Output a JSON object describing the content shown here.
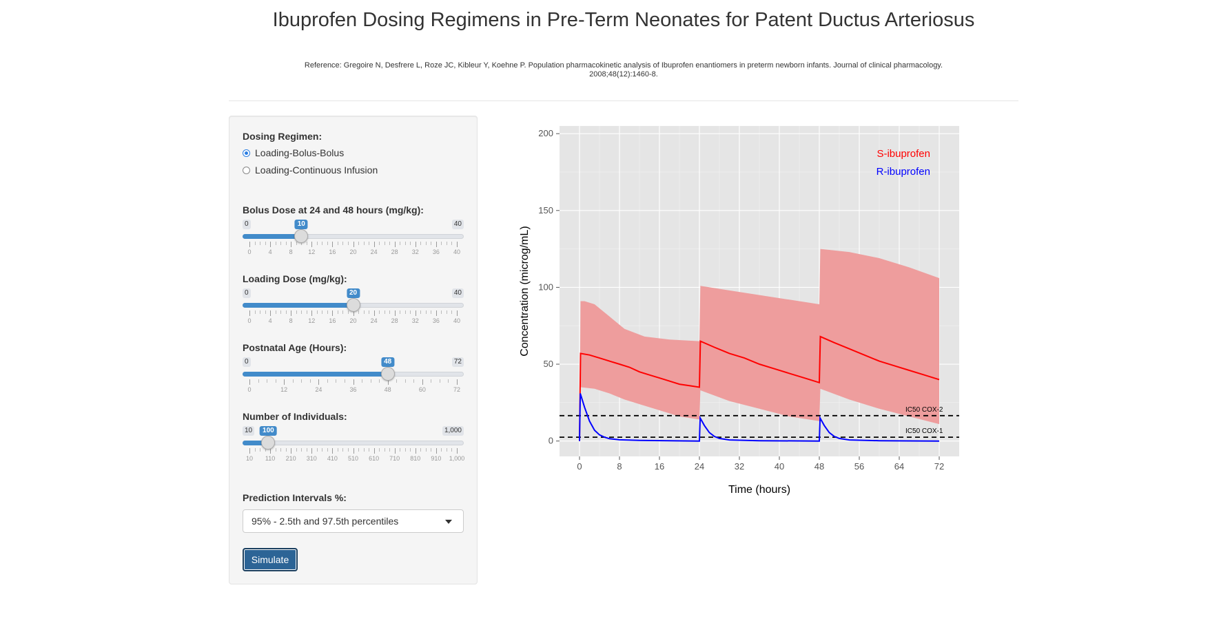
{
  "page": {
    "title": "Ibuprofen Dosing Regimens in Pre-Term Neonates for Patent Ductus Arteriosus",
    "reference": "Reference: Gregoire N, Desfrere L, Roze JC, Kibleur Y, Koehne P. Population pharmacokinetic analysis of Ibuprofen enantiomers in preterm newborn infants. Journal of clinical pharmacology. 2008;48(12):1460-8."
  },
  "sidebar": {
    "dosing_regimen": {
      "label": "Dosing Regimen:",
      "options": [
        "Loading-Bolus-Bolus",
        "Loading-Continuous Infusion"
      ],
      "selected": 0
    },
    "sliders": [
      {
        "key": "bolus",
        "label": "Bolus Dose at 24 and 48 hours (mg/kg):",
        "min": 0,
        "max": 40,
        "value": 10,
        "min_label": "0",
        "max_label": "40",
        "value_label": "10",
        "tick_labels": [
          "0",
          "4",
          "8",
          "12",
          "16",
          "20",
          "24",
          "28",
          "32",
          "36",
          "40"
        ]
      },
      {
        "key": "loading",
        "label": "Loading Dose (mg/kg):",
        "min": 0,
        "max": 40,
        "value": 20,
        "min_label": "0",
        "max_label": "40",
        "value_label": "20",
        "tick_labels": [
          "0",
          "4",
          "8",
          "12",
          "16",
          "20",
          "24",
          "28",
          "32",
          "36",
          "40"
        ]
      },
      {
        "key": "age",
        "label": "Postnatal Age (Hours):",
        "min": 0,
        "max": 72,
        "value": 48,
        "min_label": "0",
        "max_label": "72",
        "value_label": "48",
        "tick_labels": [
          "0",
          "12",
          "24",
          "36",
          "48",
          "60",
          "72"
        ]
      },
      {
        "key": "individuals",
        "label": "Number of Individuals:",
        "min": 10,
        "max": 1000,
        "value": 100,
        "min_label": "10",
        "max_label": "1,000",
        "value_label": "100",
        "tick_labels": [
          "10",
          "110",
          "210",
          "310",
          "410",
          "510",
          "610",
          "710",
          "810",
          "910",
          "1,000"
        ]
      }
    ],
    "prediction_intervals": {
      "label": "Prediction Intervals %:",
      "selected": "95% - 2.5th and 97.5th percentiles"
    },
    "simulate_label": "Simulate"
  },
  "chart_data": {
    "type": "line",
    "xlabel": "Time (hours)",
    "ylabel": "Concentration (microg/mL)",
    "xlim": [
      -4,
      76
    ],
    "ylim": [
      -10,
      205
    ],
    "x_ticks": [
      0,
      8,
      16,
      24,
      32,
      40,
      48,
      56,
      64,
      72
    ],
    "y_ticks": [
      0,
      50,
      100,
      150,
      200
    ],
    "grid": true,
    "legend_position": "top-right",
    "legend": [
      {
        "name": "S-ibuprofen",
        "color": "#ff0000"
      },
      {
        "name": "R-ibuprofen",
        "color": "#0000ff"
      }
    ],
    "reference_lines": [
      {
        "label": "IC50 COX-2",
        "y": 16.5
      },
      {
        "label": "IC50 COX-1",
        "y": 2.5
      }
    ],
    "s_band": {
      "color": "#ee9d9d",
      "upper": [
        [
          0,
          0
        ],
        [
          0.2,
          91
        ],
        [
          1,
          91
        ],
        [
          3,
          89
        ],
        [
          6,
          81
        ],
        [
          9,
          73
        ],
        [
          13,
          68
        ],
        [
          18,
          66
        ],
        [
          24,
          65
        ],
        [
          24.2,
          101
        ],
        [
          30,
          98
        ],
        [
          36,
          95
        ],
        [
          42,
          92
        ],
        [
          48,
          89
        ],
        [
          48.2,
          125
        ],
        [
          54,
          123
        ],
        [
          60,
          119
        ],
        [
          66,
          113
        ],
        [
          72,
          106
        ]
      ],
      "lower": [
        [
          0,
          0
        ],
        [
          0.2,
          35
        ],
        [
          3,
          34
        ],
        [
          6,
          31
        ],
        [
          9,
          27
        ],
        [
          12,
          24
        ],
        [
          16,
          20
        ],
        [
          20,
          16
        ],
        [
          24,
          14
        ],
        [
          24.2,
          33
        ],
        [
          30,
          26
        ],
        [
          36,
          21
        ],
        [
          42,
          16
        ],
        [
          48,
          13
        ],
        [
          48.2,
          34
        ],
        [
          54,
          27
        ],
        [
          60,
          21
        ],
        [
          66,
          16
        ],
        [
          72,
          11
        ]
      ]
    },
    "series": [
      {
        "name": "S-ibuprofen",
        "color": "#ff0000",
        "points": [
          [
            0,
            0
          ],
          [
            0.2,
            57
          ],
          [
            2,
            56
          ],
          [
            4,
            54
          ],
          [
            6,
            52
          ],
          [
            8,
            50
          ],
          [
            10,
            48
          ],
          [
            12,
            45
          ],
          [
            14,
            43
          ],
          [
            16,
            41
          ],
          [
            18,
            39
          ],
          [
            20,
            37
          ],
          [
            22,
            36
          ],
          [
            24,
            35
          ],
          [
            24.2,
            65
          ],
          [
            27,
            61
          ],
          [
            30,
            57
          ],
          [
            33,
            54
          ],
          [
            36,
            50
          ],
          [
            39,
            47
          ],
          [
            42,
            44
          ],
          [
            45,
            41
          ],
          [
            48,
            38
          ],
          [
            48.2,
            68
          ],
          [
            51,
            64
          ],
          [
            54,
            60
          ],
          [
            57,
            56
          ],
          [
            60,
            52
          ],
          [
            63,
            49
          ],
          [
            66,
            46
          ],
          [
            69,
            43
          ],
          [
            72,
            40
          ]
        ]
      },
      {
        "name": "R-ibuprofen",
        "color": "#0000ff",
        "points": [
          [
            0,
            0
          ],
          [
            0.15,
            31
          ],
          [
            1,
            22
          ],
          [
            2,
            13
          ],
          [
            3,
            7
          ],
          [
            4,
            4
          ],
          [
            5,
            2.5
          ],
          [
            6,
            1.5
          ],
          [
            8,
            0.8
          ],
          [
            12,
            0.4
          ],
          [
            18,
            0.2
          ],
          [
            24,
            0
          ],
          [
            24.15,
            15
          ],
          [
            25,
            10
          ],
          [
            26,
            5.5
          ],
          [
            27,
            3
          ],
          [
            28,
            1.7
          ],
          [
            30,
            0.7
          ],
          [
            36,
            0.2
          ],
          [
            48,
            0
          ],
          [
            48.15,
            15
          ],
          [
            49,
            10
          ],
          [
            50,
            5.5
          ],
          [
            51,
            3
          ],
          [
            52,
            1.7
          ],
          [
            54,
            0.7
          ],
          [
            60,
            0.2
          ],
          [
            72,
            0
          ]
        ]
      }
    ]
  }
}
